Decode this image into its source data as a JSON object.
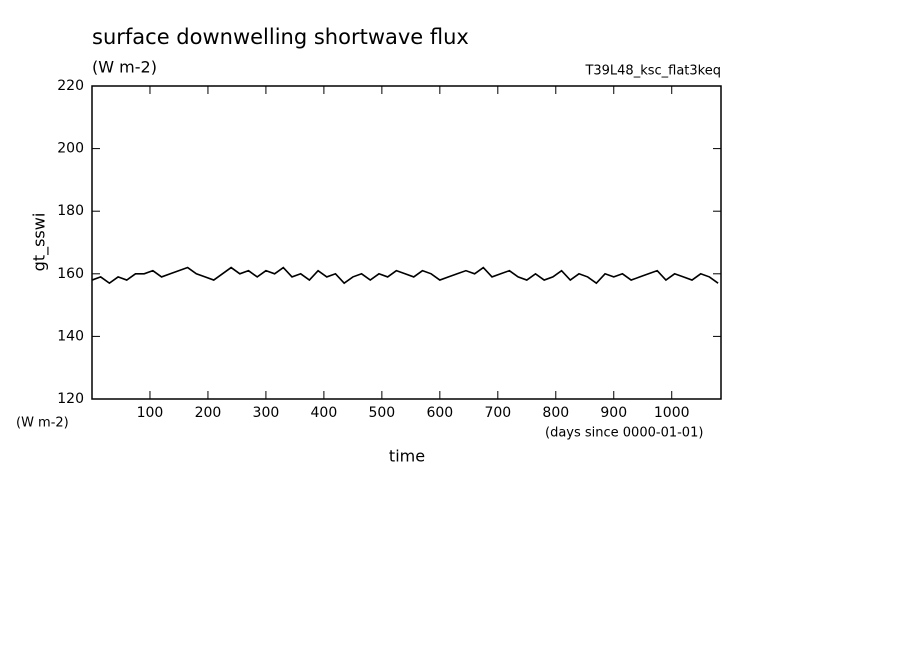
{
  "chart_data": {
    "type": "line",
    "title": "surface downwelling shortwave flux",
    "subtitle": "(W m-2)",
    "run_label": "T39L48_ksc_flat3keq",
    "ylabel": "gt_sswi",
    "y_unit_label": "(W m-2)",
    "x_unit_label": "(days since 0000-01-01)",
    "xlabel": "time",
    "xlim": [
      0,
      1085
    ],
    "xticks": [
      100,
      200,
      300,
      400,
      500,
      600,
      700,
      800,
      900,
      1000
    ],
    "ylim": [
      120,
      220
    ],
    "yticks": [
      120,
      140,
      160,
      180,
      200,
      220
    ],
    "x": [
      0,
      15,
      30,
      45,
      60,
      75,
      90,
      105,
      120,
      135,
      150,
      165,
      180,
      195,
      210,
      225,
      240,
      255,
      270,
      285,
      300,
      315,
      330,
      345,
      360,
      375,
      390,
      405,
      420,
      435,
      450,
      465,
      480,
      495,
      510,
      525,
      540,
      555,
      570,
      585,
      600,
      615,
      630,
      645,
      660,
      675,
      690,
      705,
      720,
      735,
      750,
      765,
      780,
      795,
      810,
      825,
      840,
      855,
      870,
      885,
      900,
      915,
      930,
      945,
      960,
      975,
      990,
      1005,
      1020,
      1035,
      1050,
      1065,
      1080
    ],
    "series": [
      {
        "name": "gt_sswi",
        "color": "#000000",
        "values": [
          158,
          159,
          157,
          159,
          158,
          160,
          160,
          161,
          159,
          160,
          161,
          162,
          160,
          159,
          158,
          160,
          162,
          160,
          161,
          159,
          161,
          160,
          162,
          159,
          160,
          158,
          161,
          159,
          160,
          157,
          159,
          160,
          158,
          160,
          159,
          161,
          160,
          159,
          161,
          160,
          158,
          159,
          160,
          161,
          160,
          162,
          159,
          160,
          161,
          159,
          158,
          160,
          158,
          159,
          161,
          158,
          160,
          159,
          157,
          160,
          159,
          160,
          158,
          159,
          160,
          161,
          158,
          160,
          159,
          158,
          160,
          159,
          157
        ]
      }
    ]
  }
}
